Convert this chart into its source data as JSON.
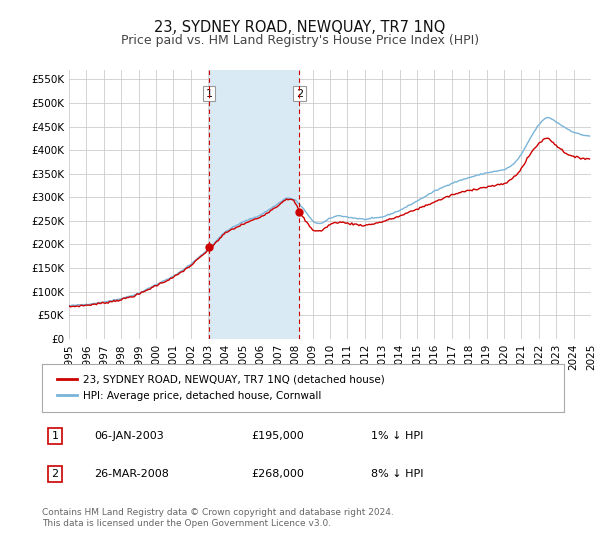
{
  "title": "23, SYDNEY ROAD, NEWQUAY, TR7 1NQ",
  "subtitle": "Price paid vs. HM Land Registry's House Price Index (HPI)",
  "ylabel_ticks": [
    "£0",
    "£50K",
    "£100K",
    "£150K",
    "£200K",
    "£250K",
    "£300K",
    "£350K",
    "£400K",
    "£450K",
    "£500K",
    "£550K"
  ],
  "ytick_values": [
    0,
    50000,
    100000,
    150000,
    200000,
    250000,
    300000,
    350000,
    400000,
    450000,
    500000,
    550000
  ],
  "ylim": [
    0,
    570000
  ],
  "hpi_color": "#7ab4d8",
  "price_color": "#cc0000",
  "shade_color": "#daeaf5",
  "transaction1": {
    "date": "06-JAN-2003",
    "price": 195000,
    "label": "1",
    "x_year": 2003.04
  },
  "transaction2": {
    "date": "26-MAR-2008",
    "price": 268000,
    "label": "2",
    "x_year": 2008.23
  },
  "vline_color": "#cc0000",
  "legend_label1": "23, SYDNEY ROAD, NEWQUAY, TR7 1NQ (detached house)",
  "legend_label2": "HPI: Average price, detached house, Cornwall",
  "footnote": "Contains HM Land Registry data © Crown copyright and database right 2024.\nThis data is licensed under the Open Government Licence v3.0.",
  "background_color": "#ffffff",
  "plot_bg_color": "#ffffff",
  "grid_color": "#cccccc",
  "title_fontsize": 10.5,
  "subtitle_fontsize": 9,
  "tick_fontsize": 7.5,
  "footnote_fontsize": 6.5,
  "shade_x_start": 2003.04,
  "shade_x_end": 2008.23,
  "x_start": 1995.0,
  "x_end": 2025.0,
  "xtick_values": [
    1995,
    1996,
    1997,
    1998,
    1999,
    2000,
    2001,
    2002,
    2003,
    2004,
    2005,
    2006,
    2007,
    2008,
    2009,
    2010,
    2011,
    2012,
    2013,
    2014,
    2015,
    2016,
    2017,
    2018,
    2019,
    2020,
    2021,
    2022,
    2023,
    2024,
    2025
  ]
}
